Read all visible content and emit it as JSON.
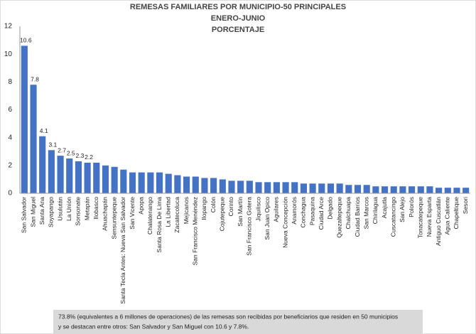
{
  "chart_data": {
    "type": "bar",
    "title": [
      "REMESAS FAMILIARES POR MUNICIPIO-50 PRINCIPALES",
      "ENERO-JUNIO",
      "PORCENTAJE"
    ],
    "categories": [
      "San Salvador",
      "San Miguel",
      "Santa Ana",
      "Soyapango",
      "Usulután",
      "La Unión",
      "Sonsonate",
      "Metapán",
      "Ilobasco",
      "Ahuachapán",
      "Sensuntepeque",
      "Santa Tecla Antes: Nueva San Salvador",
      "San Vicente",
      "Apopa",
      "Chalatenango",
      "Santa Rosa De Lima",
      "La Libertad",
      "Zacatecoluca",
      "Mejicanos",
      "San Francisco Menéndez",
      "Ilopango",
      "Colón",
      "Cojutepeque",
      "Corinto",
      "San Martín",
      "San Francisco Gotera",
      "Jiquilisco",
      "San Juan Opico",
      "Aguilares",
      "Nueva Concepción",
      "Anamorós",
      "Conchagua",
      "Pasaquina",
      "Ciudad Arce",
      "Delgado",
      "Quezaltepeque",
      "Chalchuapa",
      "Ciudad Barrios",
      "San Marcos",
      "Chirilagua",
      "Acajutla",
      "Cuscatancingo",
      "San Alejo",
      "Polorós",
      "Tonacatepeque",
      "Nueva Esparta",
      "Antiguo Cuscatlán",
      "Agua Caliente",
      "Chapeltique",
      "Sesori"
    ],
    "values": [
      10.6,
      7.8,
      4.1,
      3.1,
      2.7,
      2.5,
      2.3,
      2.2,
      2.2,
      2.0,
      1.9,
      1.7,
      1.5,
      1.5,
      1.5,
      1.5,
      1.4,
      1.3,
      1.2,
      1.2,
      1.1,
      1.1,
      1.0,
      0.9,
      0.9,
      0.9,
      0.8,
      0.8,
      0.8,
      0.8,
      0.8,
      0.7,
      0.7,
      0.7,
      0.7,
      0.7,
      0.6,
      0.6,
      0.6,
      0.5,
      0.5,
      0.5,
      0.5,
      0.5,
      0.5,
      0.5,
      0.4,
      0.4,
      0.4,
      0.4
    ],
    "value_labels": [
      "10.6",
      "7.8",
      "4.1",
      "3.1",
      "2.7",
      "2.5",
      "2.3",
      "2.2",
      null,
      null,
      null,
      null,
      null,
      null,
      null,
      null,
      null,
      null,
      null,
      null,
      null,
      null,
      null,
      null,
      null,
      null,
      null,
      null,
      null,
      null,
      null,
      null,
      null,
      null,
      null,
      null,
      null,
      null,
      null,
      null,
      null,
      null,
      null,
      null,
      null,
      null,
      null,
      null,
      null,
      null
    ],
    "color": "#4472c4",
    "ylim": [
      0,
      12
    ],
    "yticks": [
      0,
      2,
      4,
      6,
      8,
      10,
      12
    ],
    "grid": false,
    "note": [
      "73.8% (equivalentes a 6 millones de operaciones) de las remesas son recibidas por beneficiarios que residen en 50 municipios",
      "y se destacan entre otros: San Salvador y San Miguel con 10.6 y 7.8%."
    ]
  }
}
